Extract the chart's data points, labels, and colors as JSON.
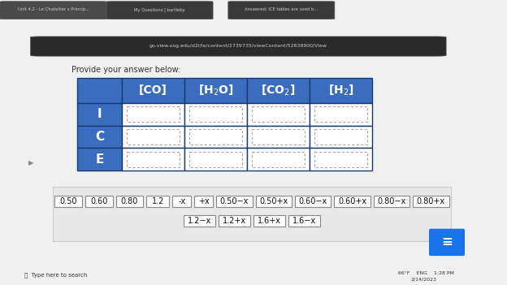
{
  "title": "Provide your answer below:",
  "page_bg": "#f5f5f5",
  "table_header_bg": "#3b6dbf",
  "table_header_text": "#ffffff",
  "table_row_bg": "#3b6dbf",
  "table_row_text": "#ffffff",
  "table_cell_bg": "#ffffff",
  "table_border": "#1a3a6e",
  "col_headers_display": [
    "[CO]",
    "[H$_2$O]",
    "[CO$_2$]",
    "[H$_2$]"
  ],
  "row_headers": [
    "I",
    "C",
    "E"
  ],
  "answer_tokens_row1": [
    "0.50",
    "0.60",
    "0.80",
    "1.2",
    "-x",
    "+x",
    "0.50−x",
    "0.50+x",
    "0.60−x",
    "0.60+x",
    "0.80−x",
    "0.80+x"
  ],
  "answer_tokens_row2": [
    "1.2−x",
    "1.2+x",
    "1.6+x",
    "1.6−x"
  ],
  "token_bg": "#ffffff",
  "token_border": "#888888",
  "token_text": "#111111",
  "dashed_cell_color": "#aaaaaa",
  "tokens_area_bg": "#e8e8e8",
  "tokens_area_border": "#cccccc",
  "browser_tab_bg": "#2b2b2b",
  "browser_url_bg": "#1a1a1a",
  "taskbar_bg": "#f0f0f0"
}
